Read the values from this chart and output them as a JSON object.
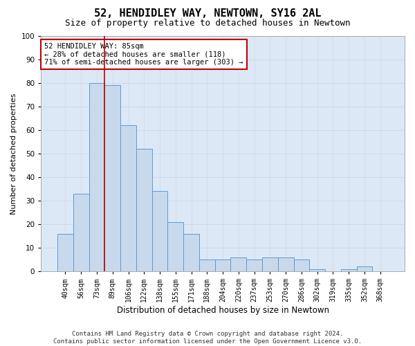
{
  "title": "52, HENDIDLEY WAY, NEWTOWN, SY16 2AL",
  "subtitle": "Size of property relative to detached houses in Newtown",
  "xlabel": "Distribution of detached houses by size in Newtown",
  "ylabel": "Number of detached properties",
  "categories": [
    "40sqm",
    "56sqm",
    "73sqm",
    "89sqm",
    "106sqm",
    "122sqm",
    "138sqm",
    "155sqm",
    "171sqm",
    "188sqm",
    "204sqm",
    "220sqm",
    "237sqm",
    "253sqm",
    "270sqm",
    "286sqm",
    "302sqm",
    "319sqm",
    "335sqm",
    "352sqm",
    "368sqm"
  ],
  "values": [
    16,
    33,
    80,
    79,
    62,
    52,
    34,
    21,
    16,
    5,
    5,
    6,
    5,
    6,
    6,
    5,
    1,
    0,
    1,
    2,
    0
  ],
  "bar_color": "#c8d9ec",
  "bar_edge_color": "#5b9bd5",
  "vline_color": "#c00000",
  "vline_x_index": 2.5,
  "annotation_text": "52 HENDIDLEY WAY: 85sqm\n← 28% of detached houses are smaller (118)\n71% of semi-detached houses are larger (303) →",
  "annotation_box_facecolor": "#ffffff",
  "annotation_box_edgecolor": "#c00000",
  "ylim": [
    0,
    100
  ],
  "yticks": [
    0,
    10,
    20,
    30,
    40,
    50,
    60,
    70,
    80,
    90,
    100
  ],
  "grid_color": "#d0d8e8",
  "plot_bg_color": "#dce8f5",
  "fig_bg_color": "#ffffff",
  "title_fontsize": 11,
  "subtitle_fontsize": 9,
  "xlabel_fontsize": 8.5,
  "ylabel_fontsize": 8,
  "tick_fontsize": 7,
  "annotation_fontsize": 7.5,
  "footer_fontsize": 6.5,
  "footer": "Contains HM Land Registry data © Crown copyright and database right 2024.\nContains public sector information licensed under the Open Government Licence v3.0."
}
